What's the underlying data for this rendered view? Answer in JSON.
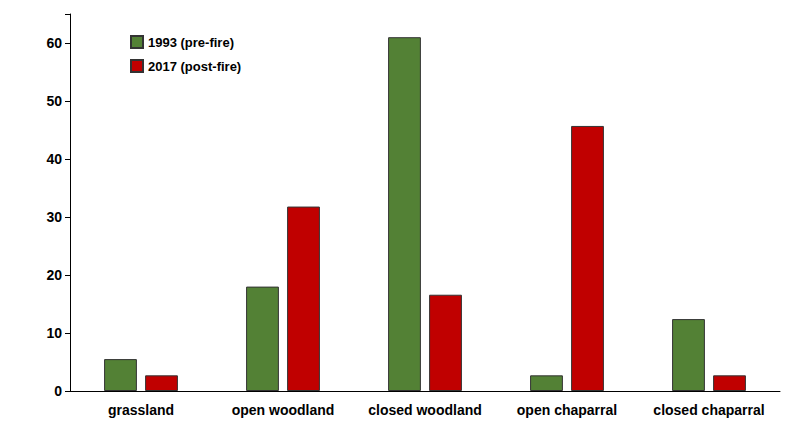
{
  "chart_data": {
    "type": "bar",
    "categories": [
      "grassland",
      "open woodland",
      "closed woodland",
      "open chaparral",
      "closed chaparral"
    ],
    "series": [
      {
        "name": "1993 (pre-fire)",
        "color": "#538135",
        "values": [
          5.5,
          18,
          61,
          2.7,
          12.4
        ]
      },
      {
        "name": "2017 (post-fire)",
        "color": "#c00000",
        "values": [
          2.7,
          31.8,
          16.6,
          45.7,
          2.7
        ]
      }
    ],
    "ylim": [
      0,
      65
    ],
    "yticks": [
      0,
      10,
      20,
      30,
      40,
      50,
      60
    ],
    "grid": false,
    "legend": "upper left"
  }
}
